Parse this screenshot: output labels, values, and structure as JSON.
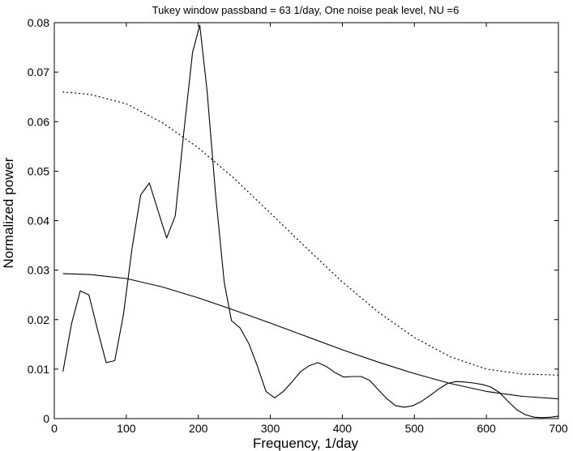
{
  "chart_data": {
    "type": "line",
    "title": "Tukey window passband = 63 1/day,  One noise peak level,  NU =6",
    "xlabel": "Frequency,  1/day",
    "ylabel": "Normalized power",
    "xlim": [
      0,
      700
    ],
    "ylim": [
      0,
      0.08
    ],
    "xticks": [
      0,
      100,
      200,
      300,
      400,
      500,
      600,
      700
    ],
    "yticks": [
      0,
      0.01,
      0.02,
      0.03,
      0.04,
      0.05,
      0.06,
      0.07,
      0.08
    ],
    "xtick_labels": [
      "0",
      "100",
      "200",
      "300",
      "400",
      "500",
      "600",
      "700"
    ],
    "ytick_labels": [
      "0",
      "0.01",
      "0.02",
      "0.03",
      "0.04",
      "0.05",
      "0.06",
      "0.07",
      "0.08"
    ],
    "grid": false,
    "series": [
      {
        "style": "solid",
        "color": "#000000",
        "x": [
          12,
          24,
          36,
          48,
          60,
          72,
          84,
          96,
          108,
          120,
          132,
          144,
          156,
          168,
          180,
          192,
          202,
          212,
          224,
          236,
          246,
          258,
          270,
          282,
          294,
          306,
          318,
          330,
          342,
          354,
          366,
          378,
          390,
          402,
          414,
          426,
          438,
          450,
          462,
          474,
          486,
          498,
          510,
          522,
          534,
          546,
          558,
          570,
          582,
          594,
          606,
          618,
          630,
          642,
          654,
          666,
          678,
          690,
          700
        ],
        "y": [
          0.0095,
          0.0192,
          0.0258,
          0.025,
          0.018,
          0.0113,
          0.0117,
          0.021,
          0.0345,
          0.0452,
          0.0476,
          0.042,
          0.0365,
          0.041,
          0.058,
          0.074,
          0.0795,
          0.0664,
          0.0453,
          0.0275,
          0.0198,
          0.0183,
          0.0152,
          0.0106,
          0.0055,
          0.0042,
          0.0055,
          0.0074,
          0.0095,
          0.0107,
          0.0113,
          0.0105,
          0.0093,
          0.0084,
          0.0085,
          0.0085,
          0.0077,
          0.0058,
          0.004,
          0.0026,
          0.0023,
          0.0026,
          0.0035,
          0.0047,
          0.006,
          0.0071,
          0.0075,
          0.0074,
          0.0072,
          0.0069,
          0.0064,
          0.0053,
          0.0035,
          0.0018,
          0.0008,
          0.0003,
          0.0002,
          0.0003,
          0.0005
        ]
      },
      {
        "style": "dotted",
        "color": "#000000",
        "x": [
          12,
          50,
          100,
          150,
          200,
          250,
          300,
          350,
          400,
          450,
          500,
          550,
          600,
          650,
          700
        ],
        "y": [
          0.066,
          0.0655,
          0.0636,
          0.0598,
          0.0547,
          0.0485,
          0.0415,
          0.0345,
          0.0276,
          0.0215,
          0.0164,
          0.0125,
          0.01,
          0.009,
          0.0088
        ]
      },
      {
        "style": "solid",
        "color": "#000000",
        "x": [
          12,
          50,
          100,
          150,
          200,
          250,
          300,
          350,
          400,
          450,
          500,
          550,
          600,
          650,
          700
        ],
        "y": [
          0.0293,
          0.0291,
          0.0283,
          0.0266,
          0.0244,
          0.0219,
          0.0193,
          0.0166,
          0.0139,
          0.0114,
          0.0091,
          0.0071,
          0.0055,
          0.0045,
          0.004
        ]
      }
    ]
  }
}
